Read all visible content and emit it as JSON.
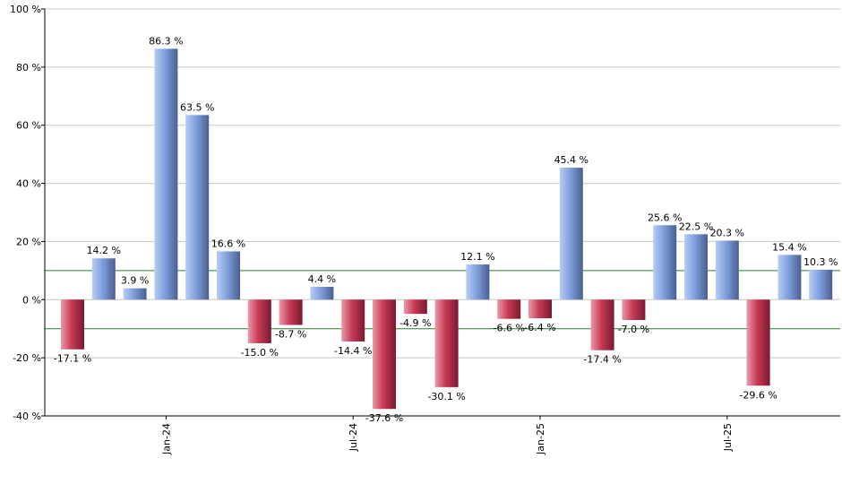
{
  "chart_data": {
    "type": "bar",
    "values": [
      -17.1,
      14.2,
      3.9,
      86.3,
      63.5,
      16.6,
      -15.0,
      -8.7,
      4.4,
      -14.4,
      -37.6,
      -4.9,
      -30.1,
      12.1,
      -6.6,
      -6.4,
      45.4,
      -17.4,
      -7.0,
      25.6,
      22.5,
      20.3,
      -29.6,
      15.4,
      10.3
    ],
    "labels": [
      "-17.1 %",
      "14.2 %",
      "3.9 %",
      "86.3 %",
      "63.5 %",
      "16.6 %",
      "-15.0 %",
      "-8.7 %",
      "4.4 %",
      "-14.4 %",
      "-37.6 %",
      "-4.9 %",
      "-30.1 %",
      "12.1 %",
      "-6.6 %",
      "-6.4 %",
      "45.4 %",
      "-17.4 %",
      "-7.0 %",
      "25.6 %",
      "22.5 %",
      "20.3 %",
      "-29.6 %",
      "15.4 %",
      "10.3 %"
    ],
    "x_tick_labels": [
      {
        "label": "Jan-24",
        "index": 3
      },
      {
        "label": "Jul-24",
        "index": 9
      },
      {
        "label": "Jan-25",
        "index": 15
      },
      {
        "label": "Jul-25",
        "index": 21
      }
    ],
    "y_ticks": [
      {
        "value": 100,
        "label": "100 %"
      },
      {
        "value": 80,
        "label": "80 %"
      },
      {
        "value": 60,
        "label": "60 %"
      },
      {
        "value": 40,
        "label": "40 %"
      },
      {
        "value": 20,
        "label": "20 %"
      },
      {
        "value": 0,
        "label": "0 %"
      },
      {
        "value": -20,
        "label": "-20 %"
      },
      {
        "value": -40,
        "label": "-40 %"
      }
    ],
    "ylim": [
      -40,
      100
    ],
    "reference_lines": [
      10,
      -10
    ],
    "grid": true,
    "colors": {
      "positive": "#7f9fdc",
      "negative": "#c83a56",
      "reference_line": "#2e7d32",
      "grid": "#c8c8c8",
      "axis": "#000000"
    }
  }
}
